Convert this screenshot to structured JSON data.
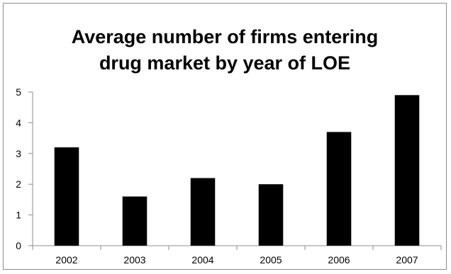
{
  "chart_data": {
    "type": "bar",
    "title_lines": [
      "Average number of firms entering",
      "drug market by year of LOE"
    ],
    "xlabel": "",
    "ylabel": "",
    "categories": [
      "2002",
      "2003",
      "2004",
      "2005",
      "2006",
      "2007"
    ],
    "values": [
      3.2,
      1.6,
      2.2,
      2.0,
      3.7,
      4.9
    ],
    "ylim": [
      0,
      5
    ],
    "yticks": [
      "0",
      "1",
      "2",
      "3",
      "4",
      "5"
    ],
    "grid": false,
    "legend": "none",
    "bar_color": "#000000"
  }
}
